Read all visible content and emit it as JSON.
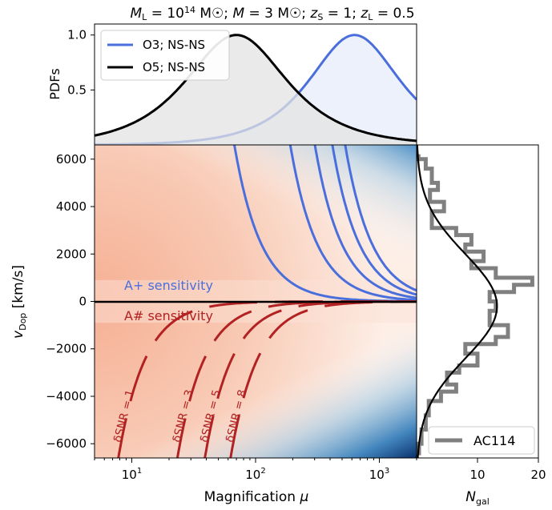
{
  "title": "M_L = 10^14 M☉; M = 3 M☉; z_S = 1; z_L = 0.5",
  "title_parts": {
    "ml": "L",
    "ml_exp": "14",
    "zs": "S",
    "zl": "L"
  },
  "colors": {
    "blue": "#4a6fdc",
    "red": "#b22222",
    "black": "#000000",
    "gray": "#808080",
    "fill_blue": "#e6ecfa",
    "fill_gray": "#e3e3e3"
  },
  "chart_data": [
    {
      "type": "area",
      "panel": "top",
      "ylabel": "PDFs",
      "xscale": "log",
      "xlim": [
        5,
        2000
      ],
      "ylim": [
        0,
        1.1
      ],
      "yticks": [
        "0.5",
        "1.0"
      ],
      "legend_position": "top-left",
      "series": [
        {
          "name": "O3; NS-NS",
          "color": "blue",
          "peak_mu": 630,
          "log_width": 0.72,
          "peak": 1.0
        },
        {
          "name": "O5; NS-NS",
          "color": "black",
          "peak_mu": 70,
          "log_width": 0.8,
          "peak": 1.0
        }
      ]
    },
    {
      "type": "heatmap",
      "panel": "main",
      "xlabel": "Magnification μ",
      "ylabel": "v_Dop [km/s]",
      "xscale": "log",
      "xlim": [
        5,
        2000
      ],
      "ylim": [
        -6600,
        6600
      ],
      "xticks": [
        {
          "value": 10,
          "label": "10",
          "exp": "1"
        },
        {
          "value": 100,
          "label": "10",
          "exp": "2"
        },
        {
          "value": 1000,
          "label": "10",
          "exp": "3"
        }
      ],
      "yticks": [
        "6000",
        "4000",
        "2000",
        "0",
        "−2000",
        "−4000",
        "−6000"
      ],
      "ytick_values": [
        6000,
        4000,
        2000,
        0,
        -2000,
        -4000,
        -6000
      ],
      "annotations": {
        "upper": "A+ sensitivity",
        "lower": "A# sensitivity"
      },
      "upper_contours": [
        {
          "name": "A+ 1",
          "color": "blue",
          "k": 30000000
        },
        {
          "name": "A+ 2",
          "color": "blue",
          "k": 240000000
        },
        {
          "name": "A+ 3",
          "color": "blue",
          "k": 600000000
        },
        {
          "name": "A+ 4",
          "color": "blue",
          "k": 1150000000
        },
        {
          "name": "A+ 5",
          "color": "blue",
          "k": 1850000000
        }
      ],
      "lower_contours": [
        {
          "label": "δSNR = 1",
          "color": "red",
          "k": 400000
        },
        {
          "label": "δSNR = 3",
          "color": "red",
          "k": 3600000
        },
        {
          "label": "δSNR = 5",
          "color": "red",
          "k": 10000000
        },
        {
          "label": "δSNR = 8",
          "color": "red",
          "k": 26000000
        }
      ],
      "zero_line": 0
    },
    {
      "type": "line",
      "panel": "right",
      "xlabel": "N_gal",
      "xlim": [
        0,
        20
      ],
      "xticks": [
        "10",
        "20"
      ],
      "xtick_values": [
        10,
        20
      ],
      "legend": "AC114",
      "legend_position": "bottom-right",
      "histogram": {
        "color": "gray",
        "points": [
          [
            6200,
            0.3
          ],
          [
            6000,
            1.5
          ],
          [
            5600,
            2.5
          ],
          [
            5000,
            3.5
          ],
          [
            4700,
            2.2
          ],
          [
            4200,
            4.5
          ],
          [
            3800,
            2.5
          ],
          [
            3100,
            6.5
          ],
          [
            2800,
            9
          ],
          [
            2400,
            8
          ],
          [
            2100,
            11
          ],
          [
            1700,
            9
          ],
          [
            1400,
            13
          ],
          [
            1000,
            19
          ],
          [
            700,
            16
          ],
          [
            400,
            12
          ],
          [
            0,
            13
          ],
          [
            -400,
            12
          ],
          [
            -1000,
            15
          ],
          [
            -1500,
            13
          ],
          [
            -1800,
            8
          ],
          [
            -2200,
            10
          ],
          [
            -2700,
            7
          ],
          [
            -3000,
            5
          ],
          [
            -3500,
            6.5
          ],
          [
            -3800,
            4
          ],
          [
            -4200,
            2
          ],
          [
            -4800,
            1.5
          ],
          [
            -5400,
            0.8
          ],
          [
            -6000,
            0.4
          ],
          [
            -6400,
            0.3
          ]
        ]
      },
      "gaussian": {
        "color": "black",
        "mean": -200,
        "sigma": 2200,
        "amplitude": 13.2
      }
    }
  ]
}
